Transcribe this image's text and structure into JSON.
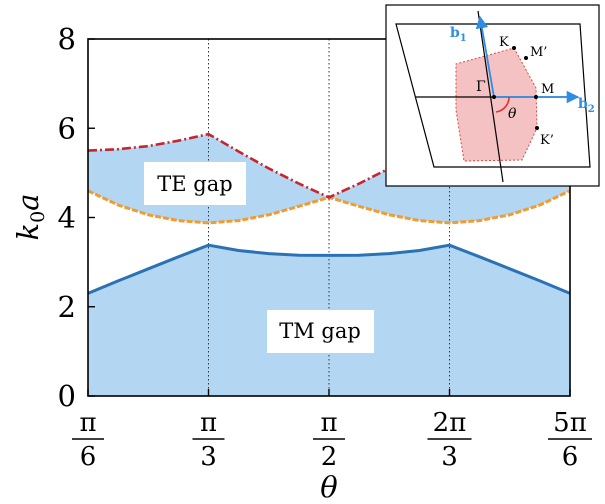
{
  "chart_data": {
    "type": "area",
    "xlabel": "θ",
    "ylabel": "k",
    "ylabel_sub": "0",
    "ylabel_tail": "a",
    "xlim": [
      0.5235988,
      2.6179939
    ],
    "ylim": [
      0,
      8
    ],
    "y_ticks": [
      0,
      2,
      4,
      6,
      8
    ],
    "x_ticks": [
      {
        "value": 0.5235988,
        "num": "π",
        "den": "6"
      },
      {
        "value": 1.0471976,
        "num": "π",
        "den": "3"
      },
      {
        "value": 1.5707963,
        "num": "π",
        "den": "2"
      },
      {
        "value": 2.0943951,
        "num": "2π",
        "den": "3"
      },
      {
        "value": 2.6179939,
        "num": "5π",
        "den": "6"
      }
    ],
    "grid": "vertical dotted lines at interior ticks",
    "colors": {
      "fill": "#b3d7f2",
      "tm_line": "#2b72b4",
      "te_upper": "#c7262e",
      "te_lower": "#f39b2e",
      "bz_fill": "#f4c2c2",
      "bz_edge": "#e0493f",
      "reciprocal_vector": "#2f8de4",
      "theta_arc": "#e8312a"
    },
    "series": [
      {
        "name": "TM gap",
        "x": [
          0.5235988,
          0.6544985,
          0.7853982,
          0.9162979,
          1.0471976,
          1.1780972,
          1.3089969,
          1.4398966,
          1.5707963,
          1.701696,
          1.8325957,
          1.9634954,
          2.0943951,
          2.2252948,
          2.3561945,
          2.4870942,
          2.6179939
        ],
        "lower": [
          0,
          0,
          0,
          0,
          0,
          0,
          0,
          0,
          0,
          0,
          0,
          0,
          0,
          0,
          0,
          0,
          0
        ],
        "upper": [
          2.3,
          2.58,
          2.85,
          3.12,
          3.38,
          3.26,
          3.19,
          3.155,
          3.15,
          3.155,
          3.19,
          3.26,
          3.38,
          3.12,
          2.85,
          2.58,
          2.3
        ]
      },
      {
        "name": "TE gap",
        "x": [
          0.5235988,
          0.6544985,
          0.7853982,
          0.9162979,
          1.0471976,
          1.1780972,
          1.3089969,
          1.4398966,
          1.5707963,
          1.701696,
          1.8325957,
          1.9634954,
          2.0943951,
          2.2252948,
          2.3561945,
          2.4870942,
          2.6179939
        ],
        "lower": [
          4.6,
          4.28,
          4.06,
          3.93,
          3.88,
          3.93,
          4.06,
          4.25,
          4.45,
          4.25,
          4.06,
          3.93,
          3.88,
          3.93,
          4.06,
          4.28,
          4.6
        ],
        "upper": [
          5.5,
          5.53,
          5.6,
          5.72,
          5.87,
          5.48,
          5.1,
          4.76,
          4.45,
          4.76,
          5.1,
          5.48,
          5.87,
          5.72,
          5.6,
          5.53,
          5.5
        ]
      }
    ],
    "annotations": [
      {
        "text": "TE gap",
        "x": 0.85,
        "y": 5.0
      },
      {
        "text": "TM gap",
        "x": 1.57,
        "y": 1.6
      }
    ],
    "inset": {
      "labels": {
        "b1": "b",
        "b1_sub": "1",
        "b2": "b",
        "b2_sub": "2",
        "gamma": "Γ",
        "K": "K",
        "M_prime": "M’",
        "M": "M",
        "K_prime": "K’",
        "theta": "θ"
      }
    }
  }
}
